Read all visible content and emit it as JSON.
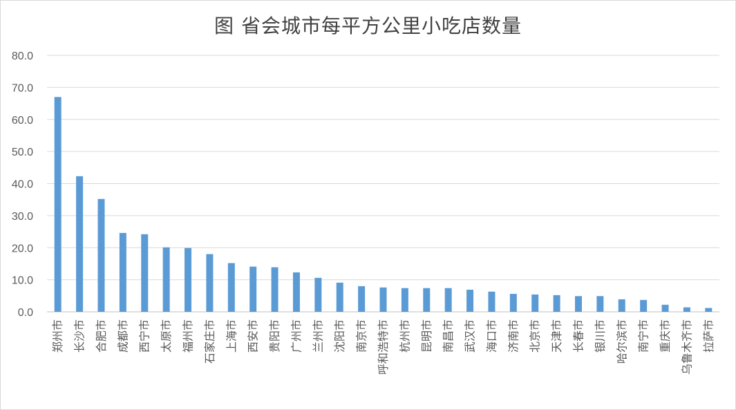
{
  "chart_data": {
    "type": "bar",
    "title": "图 省会城市每平方公里小吃店数量",
    "xlabel": "",
    "ylabel": "",
    "ylim": [
      0,
      80
    ],
    "yticks": [
      "0.0",
      "10.0",
      "20.0",
      "30.0",
      "40.0",
      "50.0",
      "60.0",
      "70.0",
      "80.0"
    ],
    "grid": true,
    "bar_color": "#5b9bd5",
    "categories": [
      "郑州市",
      "长沙市",
      "合肥市",
      "成都市",
      "西宁市",
      "太原市",
      "福州市",
      "石家庄市",
      "上海市",
      "西安市",
      "贵阳市",
      "广州市",
      "兰州市",
      "沈阳市",
      "南京市",
      "呼和浩特市",
      "杭州市",
      "昆明市",
      "南昌市",
      "武汉市",
      "海口市",
      "济南市",
      "北京市",
      "天津市",
      "长春市",
      "银川市",
      "哈尔滨市",
      "南宁市",
      "重庆市",
      "乌鲁木齐市",
      "拉萨市"
    ],
    "values": [
      67.0,
      42.3,
      35.2,
      24.6,
      24.2,
      20.1,
      19.9,
      18.0,
      15.2,
      14.1,
      13.9,
      12.3,
      10.6,
      9.1,
      8.0,
      7.6,
      7.4,
      7.4,
      7.4,
      6.9,
      6.3,
      5.6,
      5.4,
      5.2,
      4.9,
      4.9,
      3.9,
      3.7,
      2.2,
      1.4,
      1.2
    ]
  }
}
